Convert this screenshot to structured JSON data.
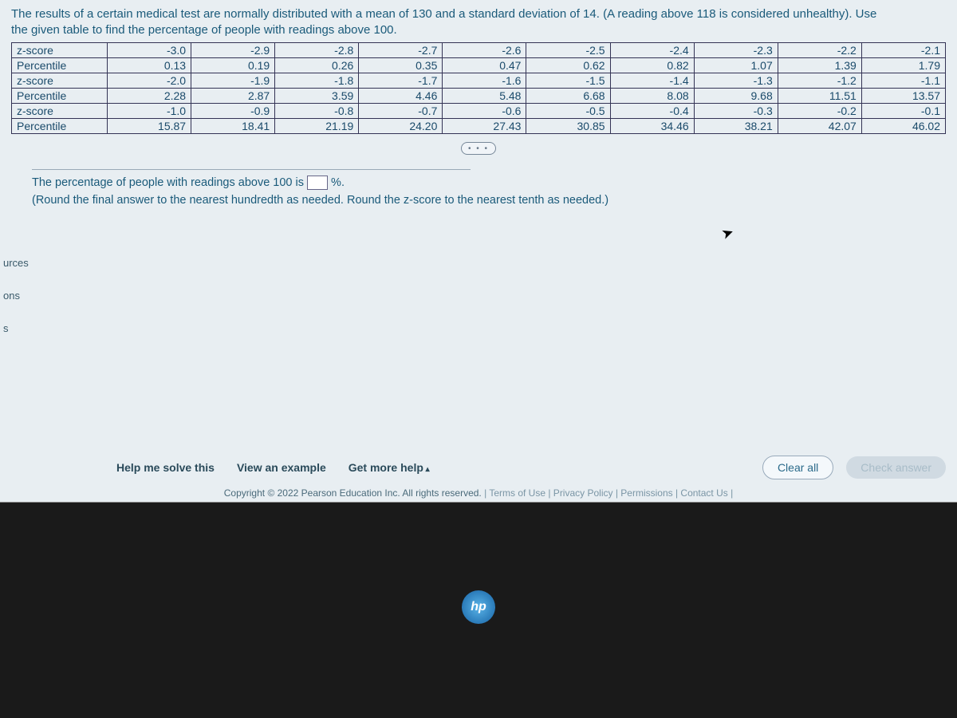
{
  "question": {
    "line1": "The results of a certain medical test are normally distributed with a mean of 130 and a standard deviation of 14. (A reading above 118 is considered unhealthy). Use",
    "line2": "the given table to find the percentage of people with readings above 100."
  },
  "table": {
    "label_z": "z-score",
    "label_p": "Percentile",
    "rows": [
      {
        "z": [
          "-3.0",
          "-2.9",
          "-2.8",
          "-2.7",
          "-2.6",
          "-2.5",
          "-2.4",
          "-2.3",
          "-2.2",
          "-2.1"
        ],
        "p": [
          "0.13",
          "0.19",
          "0.26",
          "0.35",
          "0.47",
          "0.62",
          "0.82",
          "1.07",
          "1.39",
          "1.79"
        ]
      },
      {
        "z": [
          "-2.0",
          "-1.9",
          "-1.8",
          "-1.7",
          "-1.6",
          "-1.5",
          "-1.4",
          "-1.3",
          "-1.2",
          "-1.1"
        ],
        "p": [
          "2.28",
          "2.87",
          "3.59",
          "4.46",
          "5.48",
          "6.68",
          "8.08",
          "9.68",
          "11.51",
          "13.57"
        ]
      },
      {
        "z": [
          "-1.0",
          "-0.9",
          "-0.8",
          "-0.7",
          "-0.6",
          "-0.5",
          "-0.4",
          "-0.3",
          "-0.2",
          "-0.1"
        ],
        "p": [
          "15.87",
          "18.41",
          "21.19",
          "24.20",
          "27.43",
          "30.85",
          "34.46",
          "38.21",
          "42.07",
          "46.02"
        ]
      }
    ]
  },
  "expand_label": "• • •",
  "answer": {
    "sentence_prefix": "The percentage of people with readings above 100 is ",
    "sentence_suffix": "%.",
    "hint": "(Round the final answer to the nearest hundredth as needed. Round the z-score to the nearest tenth as needed.)"
  },
  "sidebar": {
    "item1": "urces",
    "item2": "ons",
    "item3": "s"
  },
  "bottom": {
    "help": "Help me solve this",
    "example": "View an example",
    "more_help": "Get more help",
    "clear": "Clear all",
    "check": "Check answer"
  },
  "footer": {
    "copyright": "Copyright © 2022 Pearson Education Inc. All rights reserved.",
    "links": " |  Terms of Use  |  Privacy Policy  |  Permissions  |  Contact Us  |"
  },
  "logo_text": "hp"
}
